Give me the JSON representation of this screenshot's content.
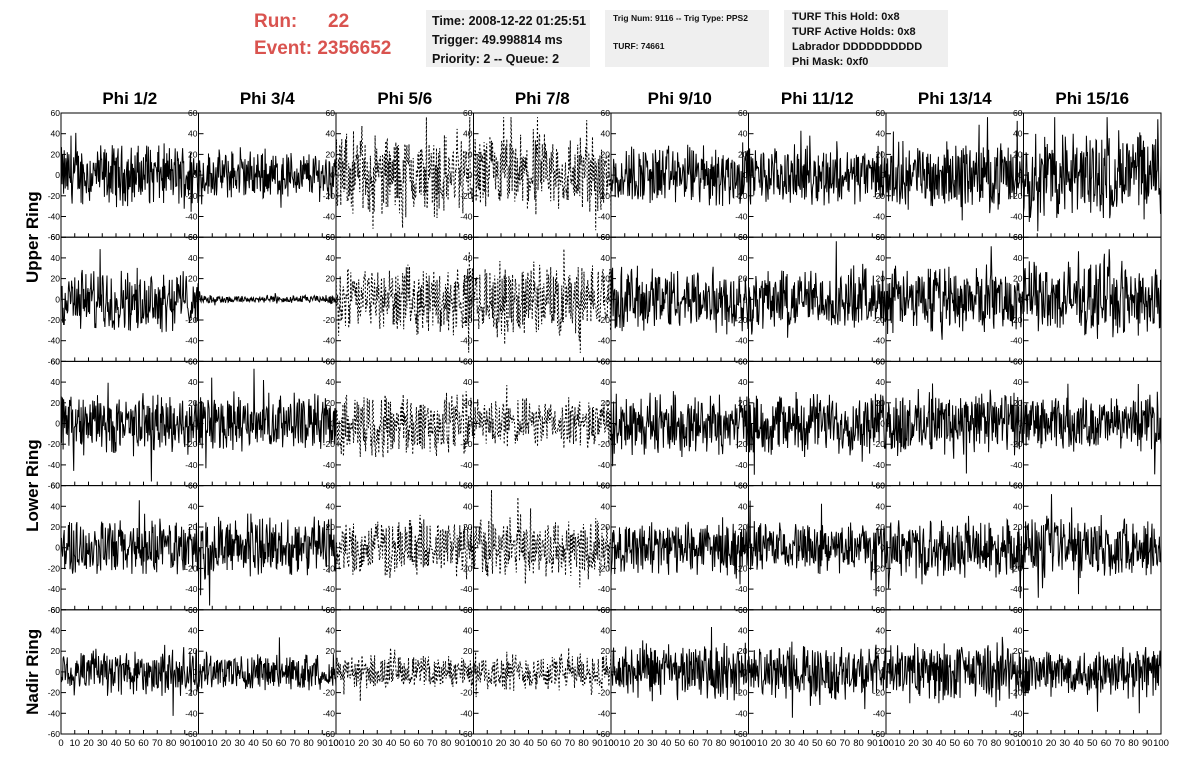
{
  "header": {
    "run_label": "Run:",
    "run_value": "22",
    "event_label": "Event:",
    "event_value": "2356652",
    "time_line": "Time: 2008-12-22 01:25:51",
    "trigger_line": "Trigger: 49.998814 ms",
    "priority_line": "Priority: 2 -- Queue: 2",
    "trig_line": "Trig Num: 9116 -- Trig Type: PPS2",
    "turf_line": "TURF: 74661",
    "turf_hold": "TURF This Hold: 0x8",
    "turf_active": "TURF Active Holds: 0x8",
    "labrador": "Labrador DDDDDDDDDD",
    "phi_mask": "Phi Mask: 0xf0"
  },
  "colors": {
    "header_red": "#d9534f",
    "info_bg": "#efefef",
    "trace": "#000000"
  },
  "chart_data": {
    "type": "line",
    "columns": [
      "Phi 1/2",
      "Phi 3/4",
      "Phi 5/6",
      "Phi 7/8",
      "Phi 9/10",
      "Phi 11/12",
      "Phi 13/14",
      "Phi 15/16"
    ],
    "rows": [
      "Upper Ring",
      "",
      "Lower Ring",
      "",
      "Nadir Ring"
    ],
    "xlim": [
      0,
      100
    ],
    "ylim": [
      -60,
      60
    ],
    "x_ticks": [
      "0",
      "10",
      "20",
      "30",
      "40",
      "50",
      "60",
      "70",
      "80",
      "90",
      "100"
    ],
    "y_ticks": [
      "60",
      "40",
      "20",
      "0",
      "-20",
      "-40",
      "-60"
    ],
    "dashed_columns": [
      "Phi 5/6",
      "Phi 7/8"
    ],
    "panel_amplitude": [
      [
        15,
        12,
        20,
        20,
        15,
        14,
        16,
        22
      ],
      [
        15,
        2,
        16,
        18,
        16,
        15,
        16,
        18
      ],
      [
        15,
        14,
        16,
        12,
        15,
        15,
        16,
        13
      ],
      [
        14,
        15,
        14,
        15,
        13,
        12,
        14,
        15
      ],
      [
        12,
        9,
        8,
        9,
        14,
        13,
        14,
        12
      ]
    ]
  }
}
